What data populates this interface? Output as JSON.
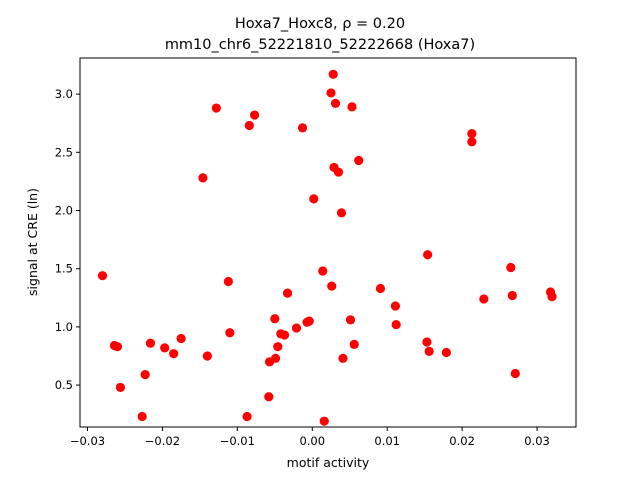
{
  "chart_data": {
    "type": "scatter",
    "title_line1": "Hoxa7_Hoxc8, ρ = 0.20",
    "title_line2": "mm10_chr6_52221810_52222668 (Hoxa7)",
    "xlabel": "motif activity",
    "ylabel": "signal at CRE (ln)",
    "xlim": [
      -0.031,
      0.0352
    ],
    "ylim": [
      0.14,
      3.31
    ],
    "xticks": [
      -0.03,
      -0.02,
      -0.01,
      0.0,
      0.01,
      0.02,
      0.03
    ],
    "xtick_labels": [
      "−0.03",
      "−0.02",
      "−0.01",
      "0.00",
      "0.01",
      "0.02",
      "0.03"
    ],
    "yticks": [
      0.5,
      1.0,
      1.5,
      2.0,
      2.5,
      3.0
    ],
    "ytick_labels": [
      "0.5",
      "1.0",
      "1.5",
      "2.0",
      "2.5",
      "3.0"
    ],
    "marker_color": "#ff0000",
    "grid": false,
    "points": [
      {
        "x": -0.028,
        "y": 1.44
      },
      {
        "x": -0.0264,
        "y": 0.84
      },
      {
        "x": -0.026,
        "y": 0.83
      },
      {
        "x": -0.0256,
        "y": 0.48
      },
      {
        "x": -0.0227,
        "y": 0.23
      },
      {
        "x": -0.0223,
        "y": 0.59
      },
      {
        "x": -0.0216,
        "y": 0.86
      },
      {
        "x": -0.0197,
        "y": 0.82
      },
      {
        "x": -0.0185,
        "y": 0.77
      },
      {
        "x": -0.0175,
        "y": 0.9
      },
      {
        "x": -0.0146,
        "y": 2.28
      },
      {
        "x": -0.014,
        "y": 0.75
      },
      {
        "x": -0.0128,
        "y": 2.88
      },
      {
        "x": -0.0112,
        "y": 1.39
      },
      {
        "x": -0.011,
        "y": 0.95
      },
      {
        "x": -0.0087,
        "y": 0.23
      },
      {
        "x": -0.0084,
        "y": 2.73
      },
      {
        "x": -0.0077,
        "y": 2.82
      },
      {
        "x": -0.0058,
        "y": 0.4
      },
      {
        "x": -0.0057,
        "y": 0.7
      },
      {
        "x": -0.005,
        "y": 1.07
      },
      {
        "x": -0.0049,
        "y": 0.73
      },
      {
        "x": -0.0046,
        "y": 0.83
      },
      {
        "x": -0.0042,
        "y": 0.94
      },
      {
        "x": -0.0037,
        "y": 0.93
      },
      {
        "x": -0.0033,
        "y": 1.29
      },
      {
        "x": -0.0021,
        "y": 0.99
      },
      {
        "x": -0.0013,
        "y": 2.71
      },
      {
        "x": -0.0007,
        "y": 1.04
      },
      {
        "x": -0.0004,
        "y": 1.05
      },
      {
        "x": 0.0002,
        "y": 2.1
      },
      {
        "x": 0.0014,
        "y": 1.48
      },
      {
        "x": 0.0016,
        "y": 0.19
      },
      {
        "x": 0.0025,
        "y": 3.01
      },
      {
        "x": 0.0026,
        "y": 1.35
      },
      {
        "x": 0.0028,
        "y": 3.17
      },
      {
        "x": 0.0029,
        "y": 2.37
      },
      {
        "x": 0.0031,
        "y": 2.92
      },
      {
        "x": 0.0035,
        "y": 2.33
      },
      {
        "x": 0.0039,
        "y": 1.98
      },
      {
        "x": 0.0041,
        "y": 0.73
      },
      {
        "x": 0.0051,
        "y": 1.06
      },
      {
        "x": 0.0053,
        "y": 2.89
      },
      {
        "x": 0.0056,
        "y": 0.85
      },
      {
        "x": 0.0062,
        "y": 2.43
      },
      {
        "x": 0.0091,
        "y": 1.33
      },
      {
        "x": 0.0111,
        "y": 1.18
      },
      {
        "x": 0.0112,
        "y": 1.02
      },
      {
        "x": 0.0153,
        "y": 0.87
      },
      {
        "x": 0.0154,
        "y": 1.62
      },
      {
        "x": 0.0156,
        "y": 0.79
      },
      {
        "x": 0.0179,
        "y": 0.78
      },
      {
        "x": 0.0213,
        "y": 2.66
      },
      {
        "x": 0.0213,
        "y": 2.59
      },
      {
        "x": 0.0229,
        "y": 1.24
      },
      {
        "x": 0.0265,
        "y": 1.51
      },
      {
        "x": 0.0267,
        "y": 1.27
      },
      {
        "x": 0.0271,
        "y": 0.6
      },
      {
        "x": 0.0318,
        "y": 1.3
      },
      {
        "x": 0.032,
        "y": 1.26
      }
    ]
  }
}
